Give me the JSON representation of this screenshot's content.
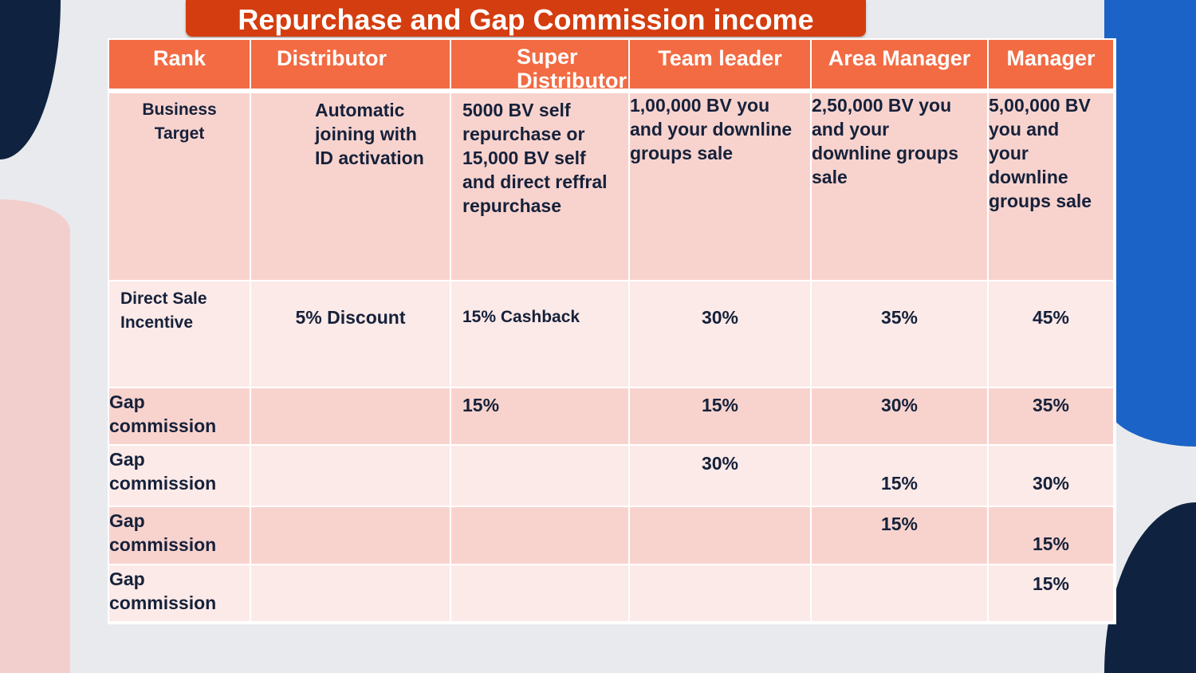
{
  "title": "Repurchase and Gap Commission income",
  "headers": [
    "Rank",
    "Distributor",
    "Super\nDistributor",
    "Team leader",
    "Area Manager",
    "Manager"
  ],
  "rows": [
    {
      "label": "Business\nTarget",
      "cells": [
        "Automatic\njoining with\nID activation",
        "5000 BV self\nrepurchase or\n15,000 BV self\nand direct reffral\nrepurchase",
        "1,00,000 BV you\nand your downline\ngroups sale",
        "2,50,000 BV you\nand your\ndownline groups\nsale",
        "5,00,000 BV\nyou and\nyour\ndownline\ngroups sale"
      ]
    },
    {
      "label": "Direct Sale\nIncentive",
      "cells": [
        "5% Discount",
        "15% Cashback",
        "30%",
        "35%",
        "45%"
      ]
    },
    {
      "label": "Gap\ncommission",
      "cells": [
        "",
        "15%",
        "15%",
        "30%",
        "35%"
      ]
    },
    {
      "label": "Gap\ncommission",
      "cells": [
        "",
        "",
        "30%",
        "15%",
        "30%"
      ]
    },
    {
      "label": "Gap\ncommission",
      "cells": [
        "",
        "",
        "",
        "15%",
        "15%"
      ]
    },
    {
      "label": "Gap\ncommission",
      "cells": [
        "",
        "",
        "",
        "",
        "15%"
      ]
    }
  ],
  "colors": {
    "header": "#f26b43",
    "title_bg": "#d43d0f",
    "row_dark": "#f8d3ce",
    "row_light": "#fceae8"
  }
}
